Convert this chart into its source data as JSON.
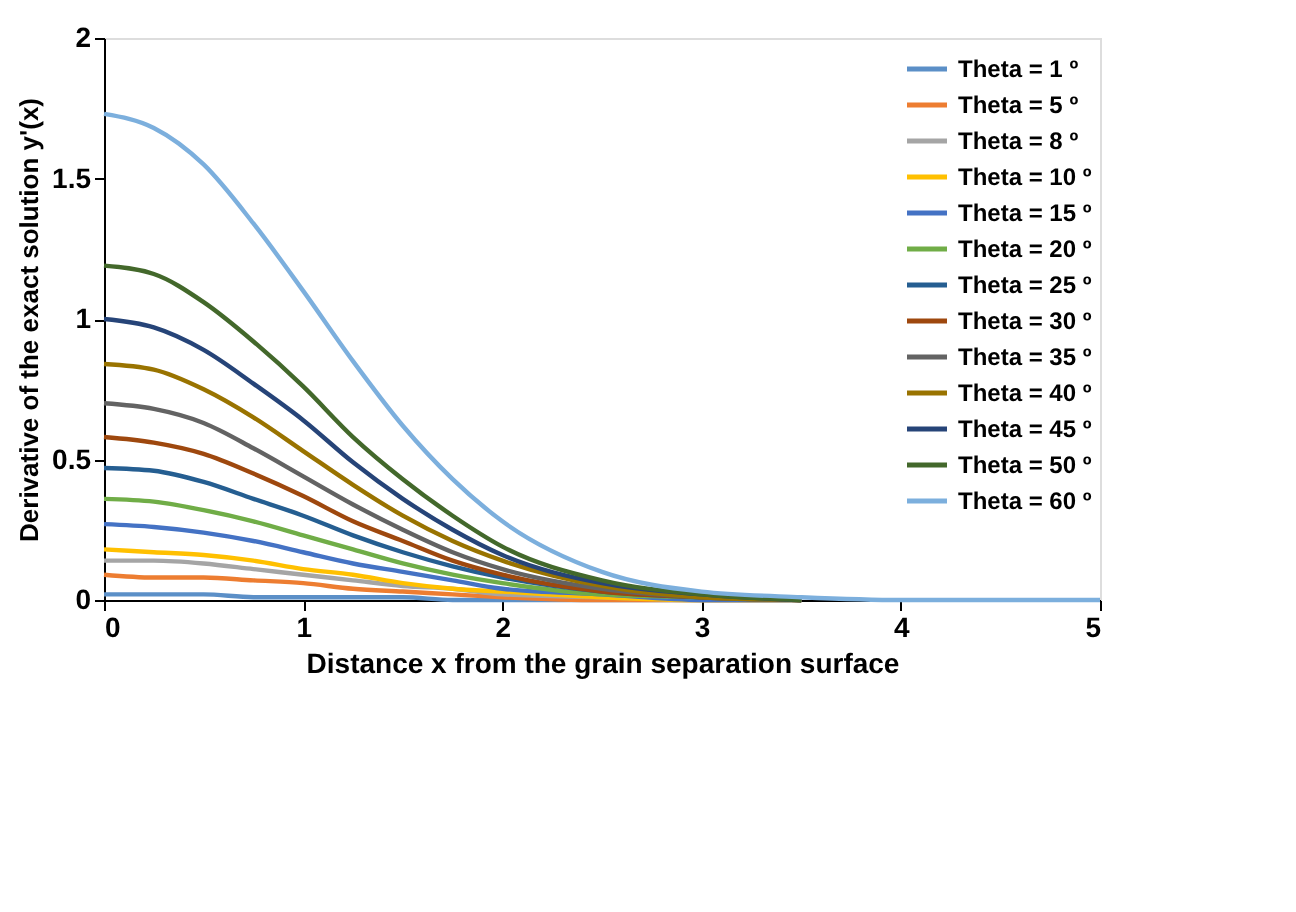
{
  "chart_data": {
    "type": "line",
    "xlabel": "Distance  x from the grain separation surface",
    "ylabel": "Derivative of the exact solution  y'(x)",
    "x": [
      0,
      0.25,
      0.5,
      0.75,
      1,
      1.25,
      1.5,
      1.75,
      2,
      2.5,
      3,
      3.5,
      4,
      5
    ],
    "xlim": [
      0,
      5
    ],
    "xticks": [
      0,
      1,
      2,
      3,
      4,
      5
    ],
    "ylim": [
      0,
      2
    ],
    "yticks": [
      0,
      0.5,
      1,
      1.5,
      2
    ],
    "grid": false,
    "legend": "top right",
    "marker": "none",
    "line_style": "solid",
    "series": [
      {
        "name": "Theta = 1 º",
        "color": "#5b8fc7",
        "values": [
          0.02,
          0.02,
          0.02,
          0.01,
          0.01,
          0.01,
          0.01,
          0,
          0,
          0,
          0,
          0,
          null,
          null
        ]
      },
      {
        "name": "Theta = 5 º",
        "color": "#ed7d31",
        "values": [
          0.09,
          0.08,
          0.08,
          0.07,
          0.06,
          0.04,
          0.03,
          0.02,
          0.01,
          0,
          0,
          0,
          null,
          null
        ]
      },
      {
        "name": "Theta = 8 º",
        "color": "#a5a5a5",
        "values": [
          0.14,
          0.14,
          0.13,
          0.11,
          0.09,
          0.07,
          0.05,
          0.04,
          0.02,
          0.01,
          0,
          0,
          null,
          null
        ]
      },
      {
        "name": "Theta = 10 º",
        "color": "#ffc000",
        "values": [
          0.18,
          0.17,
          0.16,
          0.14,
          0.11,
          0.09,
          0.06,
          0.04,
          0.03,
          0.01,
          0,
          0,
          null,
          null
        ]
      },
      {
        "name": "Theta = 15 º",
        "color": "#4472c4",
        "values": [
          0.27,
          0.26,
          0.24,
          0.21,
          0.17,
          0.13,
          0.1,
          0.07,
          0.04,
          0.02,
          0,
          0,
          null,
          null
        ]
      },
      {
        "name": "Theta = 20 º",
        "color": "#70ad47",
        "values": [
          0.36,
          0.35,
          0.32,
          0.28,
          0.23,
          0.18,
          0.13,
          0.09,
          0.06,
          0.02,
          0.01,
          0,
          null,
          null
        ]
      },
      {
        "name": "Theta = 25 º",
        "color": "#255e91",
        "values": [
          0.47,
          0.46,
          0.42,
          0.36,
          0.3,
          0.23,
          0.17,
          0.12,
          0.08,
          0.03,
          0.01,
          0,
          null,
          null
        ]
      },
      {
        "name": "Theta = 30 º",
        "color": "#9e480e",
        "values": [
          0.58,
          0.56,
          0.52,
          0.45,
          0.37,
          0.28,
          0.21,
          0.14,
          0.09,
          0.03,
          0.01,
          0,
          null,
          null
        ]
      },
      {
        "name": "Theta = 35 º",
        "color": "#636363",
        "values": [
          0.7,
          0.68,
          0.63,
          0.54,
          0.44,
          0.34,
          0.25,
          0.17,
          0.11,
          0.04,
          0.01,
          0,
          null,
          null
        ]
      },
      {
        "name": "Theta = 40 º",
        "color": "#997300",
        "values": [
          0.84,
          0.82,
          0.75,
          0.65,
          0.53,
          0.41,
          0.3,
          0.21,
          0.14,
          0.05,
          0.01,
          0,
          null,
          null
        ]
      },
      {
        "name": "Theta = 45 º",
        "color": "#264478",
        "values": [
          1,
          0.97,
          0.89,
          0.77,
          0.64,
          0.49,
          0.36,
          0.25,
          0.16,
          0.06,
          0.02,
          0,
          null,
          null
        ]
      },
      {
        "name": "Theta = 50 º",
        "color": "#43682b",
        "values": [
          1.19,
          1.16,
          1.06,
          0.92,
          0.76,
          0.58,
          0.43,
          0.3,
          0.19,
          0.07,
          0.02,
          0,
          null,
          null
        ]
      },
      {
        "name": "Theta = 60 º",
        "color": "#7cafdd",
        "values": [
          1.73,
          1.68,
          1.55,
          1.34,
          1.1,
          0.85,
          0.62,
          0.43,
          0.28,
          0.1,
          0.03,
          0.01,
          0,
          0
        ]
      }
    ]
  }
}
